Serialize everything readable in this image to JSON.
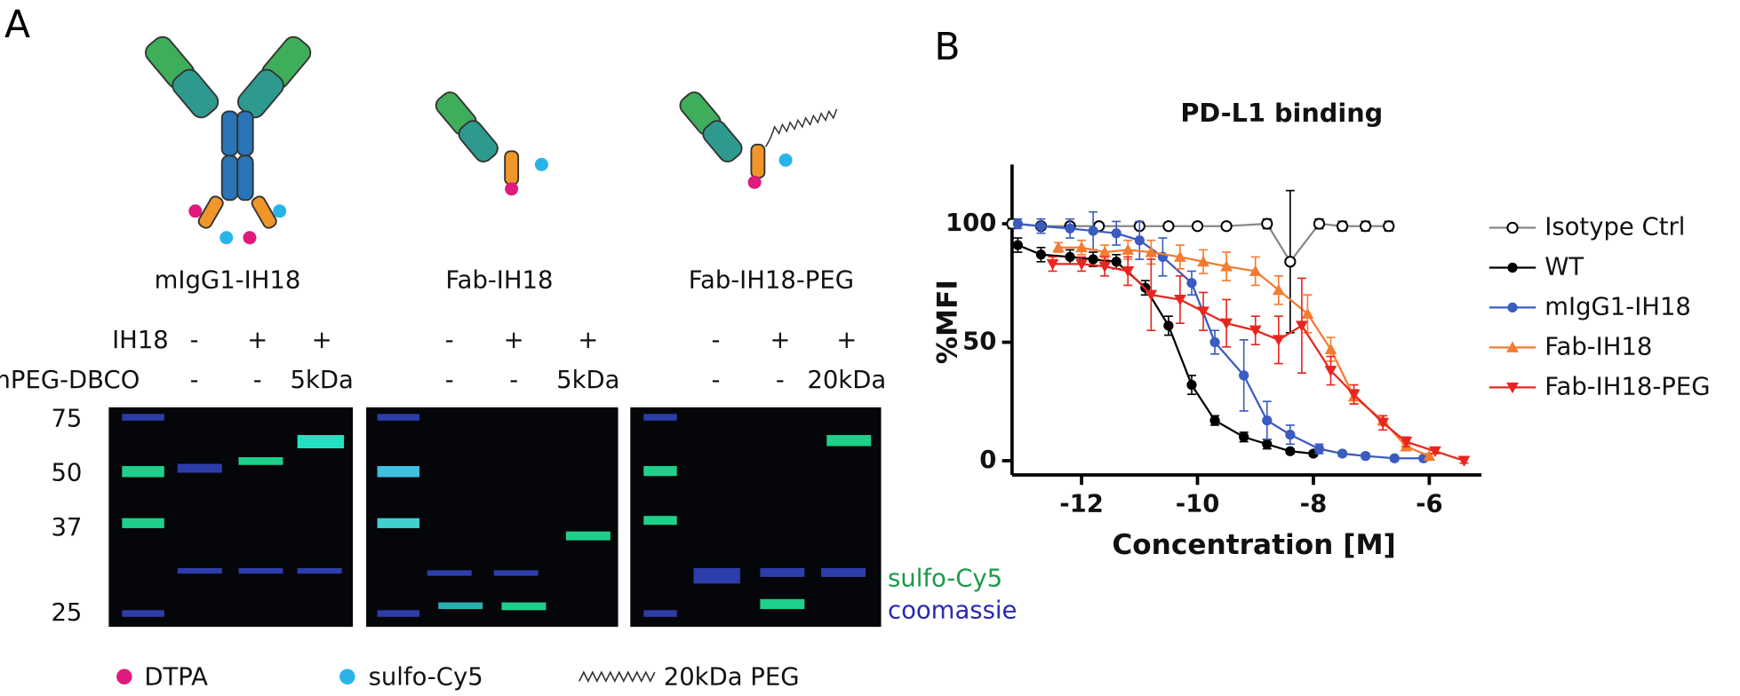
{
  "panel_a": {
    "label": "A",
    "constructs": [
      "mIgG1-IH18",
      "Fab-IH18",
      "Fab-IH18-PEG"
    ],
    "rows": [
      {
        "label": "IH18",
        "lanes": [
          "-",
          "+",
          "+",
          "-",
          "+",
          "+",
          "-",
          "+",
          "+"
        ]
      },
      {
        "label": "mPEG-DBCO",
        "lanes": [
          "-",
          "-",
          "5kDa",
          "-",
          "-",
          "5kDa",
          "-",
          "-",
          "20kDa"
        ]
      }
    ],
    "mw_markers": [
      75,
      50,
      37,
      25
    ],
    "channel_labels": [
      "sulfo-Cy5",
      "coomassie"
    ],
    "legend": [
      "DTPA",
      "sulfo-Cy5",
      "20kDa PEG"
    ]
  },
  "chart_data": {
    "type": "scatter",
    "label": "B",
    "title": "PD-L1 binding",
    "x_label": "Concentration [M]",
    "y_label": "%MFI",
    "xlim": [
      -13.2,
      -5.1
    ],
    "ylim": [
      -6,
      125
    ],
    "xticks": [
      -12,
      -10,
      -8,
      -6
    ],
    "yticks": [
      0,
      50,
      100
    ],
    "series": [
      {
        "name": "Isotype Ctrl",
        "color": "#000000",
        "line_color": "#888888",
        "marker": "open-circle",
        "x": [
          -13.2,
          -12.7,
          -12.2,
          -11.7,
          -11.0,
          -10.5,
          -10.0,
          -9.5,
          -8.8,
          -8.4,
          -7.9,
          -7.5,
          -7.1,
          -6.7
        ],
        "values": [
          100,
          99,
          99,
          99,
          99,
          99,
          99,
          99,
          100,
          84,
          100,
          99,
          99,
          99
        ],
        "errors": [
          2,
          1,
          1,
          1,
          1,
          1,
          1,
          1,
          2,
          30,
          2,
          2,
          2,
          2
        ]
      },
      {
        "name": "WT",
        "color": "#000000",
        "line_color": "#000000",
        "marker": "circle",
        "x": [
          -13.1,
          -12.7,
          -12.2,
          -11.8,
          -11.4,
          -10.9,
          -10.5,
          -10.1,
          -9.7,
          -9.2,
          -8.8,
          -8.4,
          -8.0
        ],
        "values": [
          91,
          87,
          86,
          85,
          84,
          73,
          57,
          32,
          17,
          10,
          7,
          4,
          3
        ],
        "errors": [
          3,
          3,
          3,
          3,
          3,
          3,
          4,
          4,
          2,
          2,
          2,
          1,
          1
        ]
      },
      {
        "name": "mIgG1-IH18",
        "color": "#3a5bbf",
        "line_color": "#3a5bbf",
        "marker": "circle",
        "x": [
          -13.1,
          -12.7,
          -12.2,
          -11.8,
          -11.4,
          -11.0,
          -10.6,
          -10.1,
          -9.7,
          -9.2,
          -8.8,
          -8.4,
          -7.9,
          -7.5,
          -7.1,
          -6.6,
          -6.1
        ],
        "values": [
          100,
          99,
          98,
          97,
          96,
          93,
          86,
          75,
          50,
          36,
          17,
          11,
          5,
          3,
          2,
          1,
          1
        ],
        "errors": [
          2,
          3,
          4,
          8,
          5,
          8,
          8,
          5,
          5,
          15,
          8,
          4,
          2,
          1,
          1,
          1,
          1
        ]
      },
      {
        "name": "Fab-IH18",
        "color": "#f47b30",
        "line_color": "#f47b30",
        "marker": "triangle-up",
        "x": [
          -12.4,
          -12.0,
          -11.6,
          -11.2,
          -10.8,
          -10.3,
          -9.9,
          -9.5,
          -9.0,
          -8.6,
          -8.1,
          -7.7,
          -7.3,
          -6.8,
          -6.4,
          -6.0
        ],
        "values": [
          90,
          90,
          88,
          89,
          88,
          86,
          84,
          82,
          80,
          72,
          62,
          47,
          27,
          17,
          6,
          2
        ],
        "errors": [
          2,
          3,
          3,
          4,
          5,
          5,
          5,
          6,
          6,
          6,
          8,
          5,
          3,
          2,
          1,
          1
        ]
      },
      {
        "name": "Fab-IH18-PEG",
        "color": "#e8261f",
        "line_color": "#e8261f",
        "marker": "triangle-down",
        "x": [
          -12.5,
          -12.0,
          -11.6,
          -11.2,
          -10.8,
          -10.3,
          -9.9,
          -9.5,
          -9.0,
          -8.6,
          -8.2,
          -7.7,
          -7.3,
          -6.8,
          -6.4,
          -5.9,
          -5.4
        ],
        "values": [
          83,
          83,
          82,
          80,
          70,
          68,
          63,
          58,
          55,
          51,
          57,
          38,
          28,
          16,
          8,
          4,
          0
        ],
        "errors": [
          3,
          3,
          4,
          6,
          15,
          10,
          8,
          10,
          6,
          10,
          20,
          6,
          4,
          3,
          2,
          1,
          1
        ]
      }
    ]
  }
}
